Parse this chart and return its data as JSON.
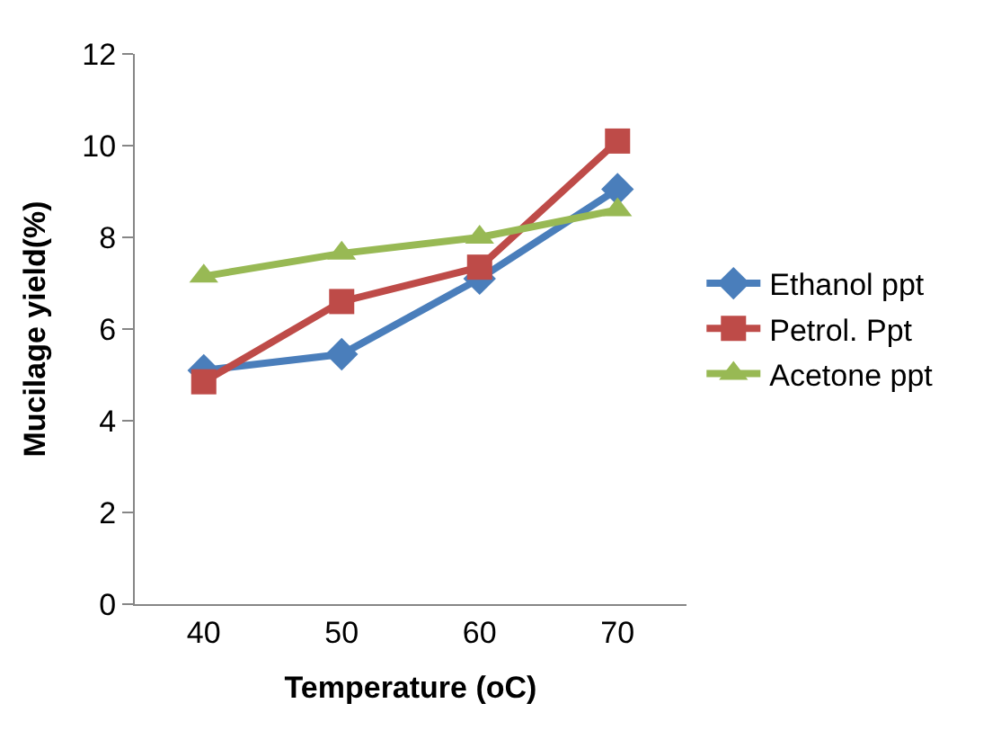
{
  "chart_data": {
    "type": "line",
    "xlabel": "Temperature (oC)",
    "ylabel": "Mucilage yield(%)",
    "categories": [
      "40",
      "50",
      "60",
      "70"
    ],
    "series": [
      {
        "name": "Ethanol ppt",
        "color": "#4a7ebb",
        "marker": "diamond",
        "values": [
          5.1,
          5.45,
          7.1,
          9.05
        ]
      },
      {
        "name": "Petrol. Ppt",
        "color": "#be4b48",
        "marker": "square",
        "values": [
          4.85,
          6.6,
          7.35,
          10.1
        ]
      },
      {
        "name": "Acetone ppt",
        "color": "#98b954",
        "marker": "triangle",
        "values": [
          7.15,
          7.65,
          8.0,
          8.6
        ]
      }
    ],
    "ylim": [
      0,
      12
    ],
    "yticks": [
      0,
      2,
      4,
      6,
      8,
      10,
      12
    ],
    "legend": "right"
  }
}
